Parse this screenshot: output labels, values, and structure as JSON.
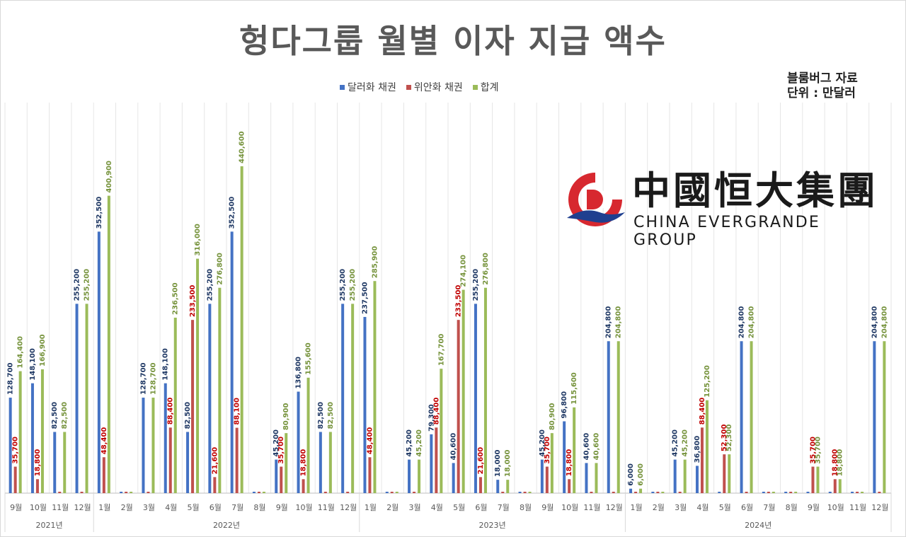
{
  "title": "헝다그룹 월별 이자 지급 액수",
  "source": {
    "line1": "블룸버그 자료",
    "line2": "단위 : 만달러"
  },
  "logo": {
    "text_cn": "中國恒大集團",
    "text_en": "CHINA EVERGRANDE GROUP",
    "color_red": "#d7282f",
    "color_blue": "#1f3f8f"
  },
  "colors": {
    "dollar": "#4472c4",
    "yuan": "#c0504d",
    "total": "#9bbb59"
  },
  "chart_data": {
    "type": "bar",
    "title": "헝다그룹 월별 이자 지급 액수",
    "categories": [
      "9월",
      "10월",
      "11월",
      "12월",
      "1월",
      "2월",
      "3월",
      "4월",
      "5월",
      "6월",
      "7월",
      "8월",
      "9월",
      "10월",
      "11월",
      "12월",
      "1월",
      "2월",
      "3월",
      "4월",
      "5월",
      "6월",
      "7월",
      "8월",
      "9월",
      "10월",
      "11월",
      "12월",
      "1월",
      "2월",
      "3월",
      "4월",
      "5월",
      "6월",
      "7월",
      "8월",
      "9월",
      "10월",
      "11월",
      "12월"
    ],
    "groups": [
      {
        "label": "2021년",
        "start": 0,
        "count": 4
      },
      {
        "label": "2022년",
        "start": 4,
        "count": 12
      },
      {
        "label": "2023년",
        "start": 16,
        "count": 12
      },
      {
        "label": "2024년",
        "start": 28,
        "count": 12
      }
    ],
    "series": [
      {
        "name": "달러화 채권",
        "color": "#4472c4",
        "label_color": "#1f3864",
        "values": [
          128700,
          148100,
          82500,
          255200,
          352500,
          0,
          128700,
          148100,
          82500,
          255200,
          352500,
          0,
          45200,
          136800,
          82500,
          255200,
          237500,
          0,
          45200,
          79300,
          40600,
          255200,
          18000,
          0,
          45200,
          96800,
          40600,
          204800,
          6000,
          0,
          45200,
          36800,
          0,
          204800,
          0,
          0,
          0,
          0,
          0,
          204800
        ]
      },
      {
        "name": "위안화 채권",
        "color": "#c0504d",
        "label_color": "#c00000",
        "values": [
          35700,
          18800,
          0,
          0,
          48400,
          0,
          0,
          88400,
          233500,
          21600,
          88100,
          0,
          35700,
          18800,
          0,
          0,
          48400,
          0,
          0,
          88400,
          233500,
          21600,
          0,
          0,
          35700,
          18800,
          0,
          0,
          0,
          0,
          0,
          88400,
          52300,
          0,
          0,
          0,
          35700,
          18800,
          0,
          0
        ]
      },
      {
        "name": "합계",
        "color": "#9bbb59",
        "label_color": "#76933c",
        "values": [
          164400,
          166900,
          82500,
          255200,
          400900,
          0,
          128700,
          236500,
          316000,
          276800,
          440600,
          0,
          80900,
          155600,
          82500,
          255200,
          285900,
          0,
          45200,
          167700,
          274100,
          276800,
          18000,
          0,
          80900,
          115600,
          40600,
          204800,
          6000,
          0,
          45200,
          125200,
          52300,
          204800,
          0,
          0,
          35700,
          18800,
          0,
          204800
        ]
      }
    ],
    "ylim": [
      0,
      460000
    ],
    "legend_position": "top"
  }
}
